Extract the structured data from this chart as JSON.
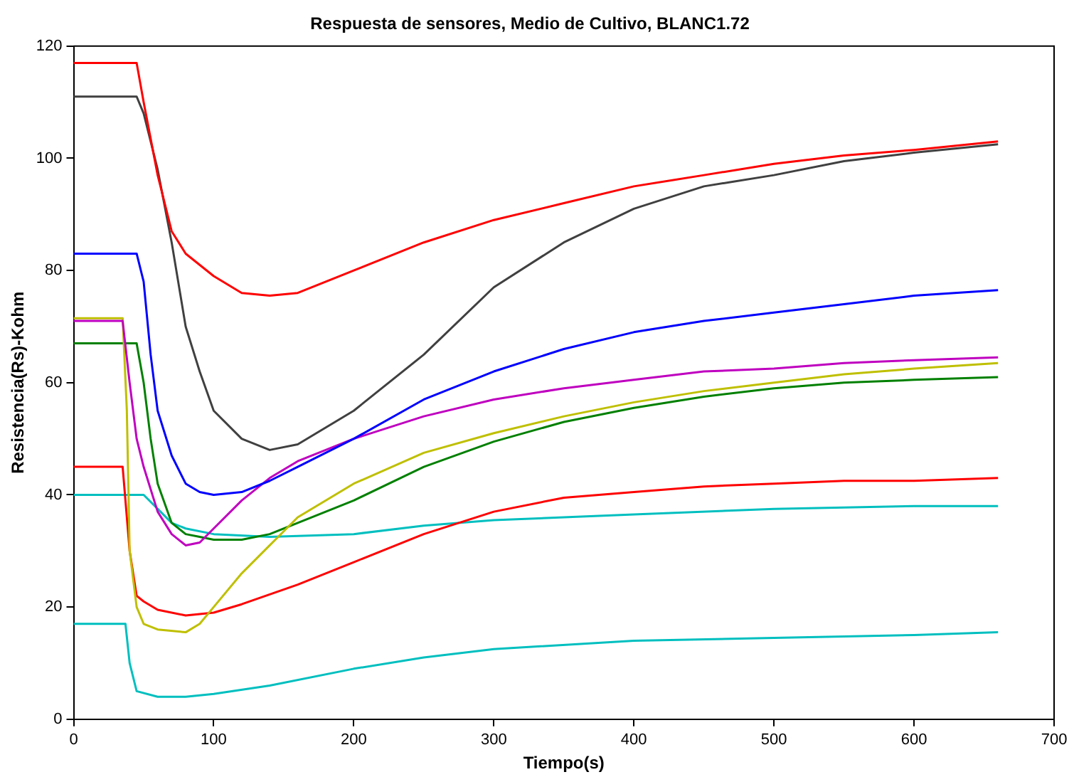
{
  "chart_data": {
    "type": "line",
    "title": "Respuesta de sensores, Medio de Cultivo, BLANC1.72",
    "xlabel": "Tiempo(s)",
    "ylabel": "Resistencia(Rs)-Kohm",
    "xlim": [
      0,
      700
    ],
    "ylim": [
      0,
      120
    ],
    "xticks": [
      0,
      100,
      200,
      300,
      400,
      500,
      600,
      700
    ],
    "yticks": [
      0,
      20,
      40,
      60,
      80,
      100,
      120
    ],
    "grid": false,
    "legend": false,
    "marker": "none",
    "line_style": "solid",
    "series": [
      {
        "color": "#ff0000",
        "x": [
          0,
          45,
          50,
          60,
          70,
          80,
          90,
          100,
          120,
          140,
          160,
          200,
          250,
          300,
          350,
          400,
          450,
          500,
          550,
          600,
          660
        ],
        "values": [
          117,
          117,
          110,
          97,
          87,
          83,
          81,
          79,
          76,
          75.5,
          76,
          80,
          85,
          89,
          92,
          95,
          97,
          99,
          100.5,
          101.5,
          103
        ]
      },
      {
        "color": "#404040",
        "x": [
          0,
          45,
          50,
          60,
          70,
          80,
          90,
          100,
          120,
          140,
          160,
          200,
          250,
          300,
          350,
          400,
          450,
          500,
          550,
          600,
          660
        ],
        "values": [
          111,
          111,
          108,
          98,
          85,
          70,
          62,
          55,
          50,
          48,
          49,
          55,
          65,
          77,
          85,
          91,
          95,
          97,
          99.5,
          101,
          102.5
        ]
      },
      {
        "color": "#0000ff",
        "x": [
          0,
          45,
          50,
          55,
          60,
          70,
          80,
          90,
          100,
          120,
          140,
          160,
          200,
          250,
          300,
          350,
          400,
          450,
          500,
          550,
          600,
          660
        ],
        "values": [
          83,
          83,
          78,
          65,
          55,
          47,
          42,
          40.5,
          40,
          40.5,
          42.5,
          45,
          50,
          57,
          62,
          66,
          69,
          71,
          72.5,
          74,
          75.5,
          76.5
        ]
      },
      {
        "color": "#bf00bf",
        "x": [
          0,
          35,
          40,
          45,
          50,
          60,
          70,
          80,
          90,
          100,
          120,
          140,
          160,
          200,
          250,
          300,
          350,
          400,
          450,
          500,
          550,
          600,
          660
        ],
        "values": [
          71,
          71,
          60,
          50,
          45,
          37,
          33,
          31,
          31.5,
          34,
          39,
          43,
          46,
          50,
          54,
          57,
          59,
          60.5,
          62,
          62.5,
          63.5,
          64,
          64.5
        ]
      },
      {
        "color": "#bfbf00",
        "x": [
          0,
          35,
          38,
          40,
          45,
          50,
          60,
          80,
          90,
          100,
          120,
          140,
          160,
          200,
          250,
          300,
          350,
          400,
          450,
          500,
          550,
          600,
          660
        ],
        "values": [
          71.5,
          71.5,
          55,
          30,
          20,
          17,
          16,
          15.5,
          17,
          20,
          26,
          31,
          36,
          42,
          47.5,
          51,
          54,
          56.5,
          58.5,
          60,
          61.5,
          62.5,
          63.5
        ]
      },
      {
        "color": "#008000",
        "x": [
          0,
          45,
          50,
          55,
          60,
          70,
          80,
          90,
          100,
          120,
          140,
          160,
          200,
          250,
          300,
          350,
          400,
          450,
          500,
          550,
          600,
          660
        ],
        "values": [
          67,
          67,
          60,
          50,
          42,
          35,
          33,
          32.5,
          32,
          32,
          33,
          35,
          39,
          45,
          49.5,
          53,
          55.5,
          57.5,
          59,
          60,
          60.5,
          61
        ]
      },
      {
        "color": "#ff0000",
        "x": [
          0,
          35,
          40,
          45,
          50,
          60,
          80,
          100,
          120,
          160,
          200,
          250,
          300,
          350,
          400,
          450,
          500,
          550,
          600,
          660
        ],
        "values": [
          45,
          45,
          30,
          22,
          21,
          19.5,
          18.5,
          19,
          20.5,
          24,
          28,
          33,
          37,
          39.5,
          40.5,
          41.5,
          42,
          42.5,
          42.5,
          43
        ]
      },
      {
        "color": "#00bfbf",
        "x": [
          0,
          50,
          60,
          70,
          80,
          100,
          140,
          200,
          250,
          300,
          350,
          400,
          500,
          600,
          660
        ],
        "values": [
          40,
          40,
          37.5,
          35,
          34,
          33,
          32.5,
          33,
          34.5,
          35.5,
          36,
          36.5,
          37.5,
          38,
          38
        ]
      },
      {
        "color": "#00bfbf",
        "x": [
          0,
          37,
          40,
          45,
          60,
          80,
          100,
          140,
          200,
          250,
          300,
          400,
          500,
          600,
          660
        ],
        "values": [
          17,
          17,
          10,
          5,
          4,
          4,
          4.5,
          6,
          9,
          11,
          12.5,
          14,
          14.5,
          15,
          15.5
        ]
      }
    ]
  }
}
